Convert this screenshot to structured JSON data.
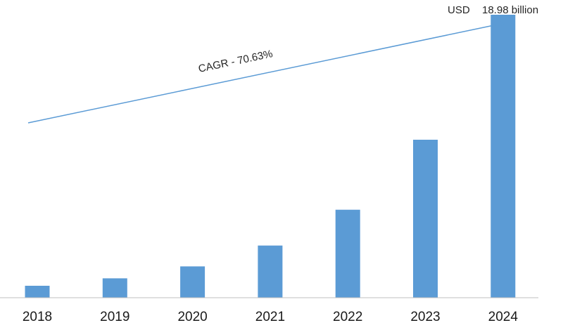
{
  "chart_data": {
    "type": "bar",
    "categories": [
      "2018",
      "2019",
      "2020",
      "2021",
      "2022",
      "2023",
      "2024"
    ],
    "values": [
      0.8,
      1.3,
      2.1,
      3.5,
      5.9,
      10.6,
      18.98
    ],
    "ylim": [
      0,
      19.5
    ],
    "grid": false,
    "bar_color": "#5b9bd5",
    "arrow_color": "#5b9bd5",
    "axis_color": "#bfbfbf",
    "annotations": {
      "cagr": "CAGR - 70.63%",
      "last_value_currency": "USD",
      "last_value_amount": "18.98 billion"
    }
  }
}
